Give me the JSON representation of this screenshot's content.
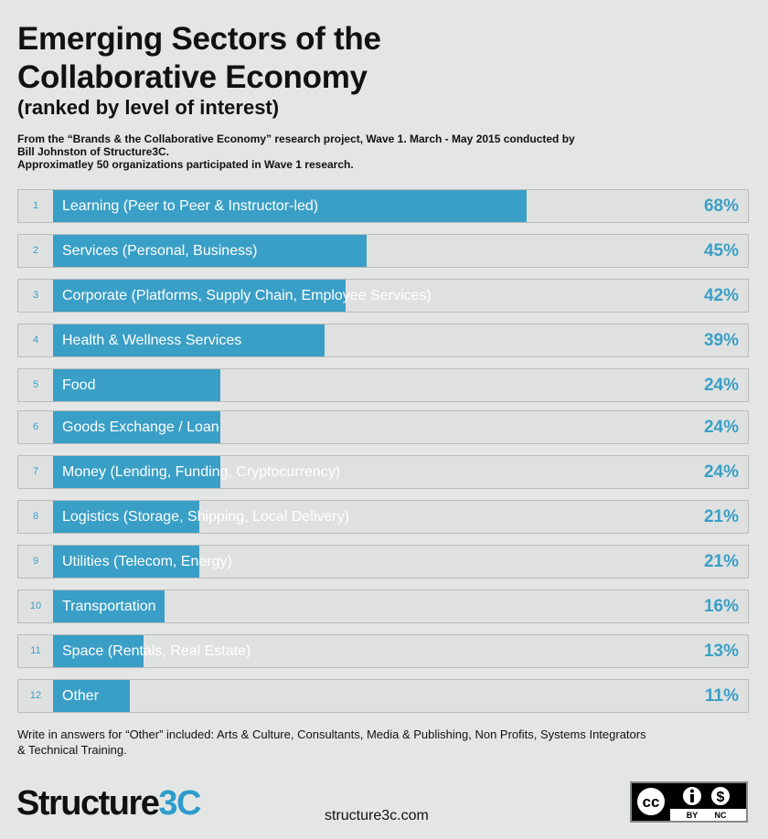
{
  "header": {
    "title_line1": "Emerging Sectors of the",
    "title_line2": "Collaborative Economy",
    "subtitle": "(ranked by level of interest)",
    "source_line1": "From the “Brands & the Collaborative Economy” research project, Wave 1. March - May 2015 conducted by",
    "source_line2": "Bill Johnston of Structure3C.",
    "source_line3": "Approximatley 50 organizations participated in Wave 1 research."
  },
  "chart_data": {
    "type": "bar",
    "orientation": "horizontal",
    "title": "Emerging Sectors of the Collaborative Economy",
    "subtitle": "(ranked by level of interest)",
    "xlabel": "",
    "ylabel": "",
    "xlim": [
      0,
      100
    ],
    "unit": "%",
    "ranks": [
      "1",
      "2",
      "3",
      "4",
      "5",
      "6",
      "7",
      "8",
      "9",
      "10",
      "11",
      "12"
    ],
    "categories": [
      "Learning (Peer to Peer & Instructor-led)",
      "Services (Personal, Business)",
      "Corporate (Platforms, Supply Chain, Employee Services)",
      "Health & Wellness Services",
      "Food",
      "Goods Exchange / Loan",
      "Money (Lending, Funding, Cryptocurrency)",
      "Logistics (Storage, Shipping, Local Delivery)",
      "Utilities (Telecom, Energy)",
      "Transportation",
      "Space (Rentals, Real Estate)",
      "Other"
    ],
    "values": [
      68,
      45,
      42,
      39,
      24,
      24,
      24,
      21,
      21,
      16,
      13,
      11
    ],
    "value_labels": [
      "68%",
      "45%",
      "42%",
      "39%",
      "24%",
      "24%",
      "24%",
      "21%",
      "21%",
      "16%",
      "13%",
      "11%"
    ],
    "bar_color": "#3a9fc6"
  },
  "footer": {
    "note_line1": "Write in answers for “Other” included: Arts & Culture, Consultants, Media & Publishing, Non Profits, Systems Integrators",
    "note_line2": "& Technical Training.",
    "logo_main": "Structure",
    "logo_accent": "3C",
    "url": "structure3c.com",
    "license_by": "BY",
    "license_nc": "NC",
    "license_cc": "cc",
    "license_dollar": "$"
  },
  "colors": {
    "accent": "#3a9fc6",
    "background": "#e4e6e5",
    "logo_accent": "#2e9ccd"
  }
}
